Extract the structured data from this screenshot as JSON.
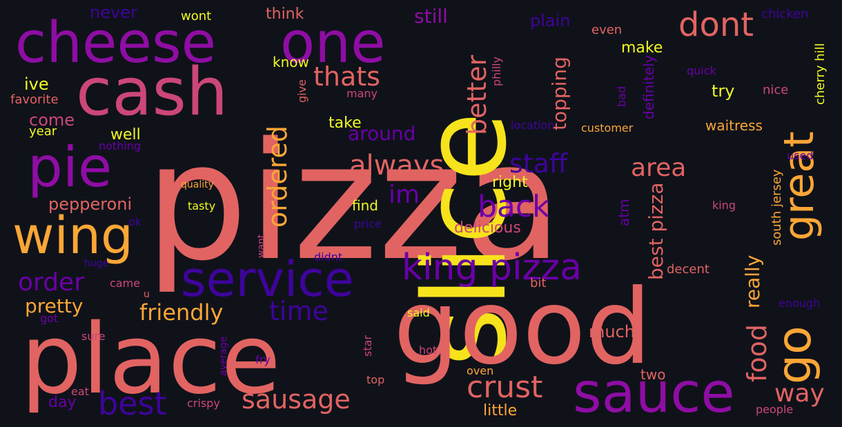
{
  "words": [
    {
      "text": "pizza",
      "color": "#e16462"
    },
    {
      "text": "slice",
      "color": "#f6e31c"
    },
    {
      "text": "good",
      "color": "#e16462"
    },
    {
      "text": "place",
      "color": "#e16462"
    },
    {
      "text": "cash",
      "color": "#cc4778"
    },
    {
      "text": "cheese",
      "color": "#8f0da4"
    },
    {
      "text": "one",
      "color": "#8f0da4"
    },
    {
      "text": "dont",
      "color": "#e16462"
    },
    {
      "text": "great",
      "color": "#fca636"
    },
    {
      "text": "sauce",
      "color": "#8f0da4"
    },
    {
      "text": "service",
      "color": "#3f049c"
    },
    {
      "text": "king pizza",
      "color": "#6a00a8"
    },
    {
      "text": "pie",
      "color": "#8f0da4"
    },
    {
      "text": "wing",
      "color": "#fca636"
    },
    {
      "text": "go",
      "color": "#fca636"
    },
    {
      "text": "best",
      "color": "#3f049c"
    },
    {
      "text": "crust",
      "color": "#e16462"
    },
    {
      "text": "sausage",
      "color": "#e16462"
    },
    {
      "text": "back",
      "color": "#6a00a8"
    },
    {
      "text": "always",
      "color": "#e16462"
    },
    {
      "text": "ordered",
      "color": "#fca636"
    },
    {
      "text": "thats",
      "color": "#e16462"
    },
    {
      "text": "better",
      "color": "#e16462"
    },
    {
      "text": "staff",
      "color": "#3f049c"
    },
    {
      "text": "area",
      "color": "#e16462"
    },
    {
      "text": "time",
      "color": "#3f049c"
    },
    {
      "text": "order",
      "color": "#6a00a8"
    },
    {
      "text": "friendly",
      "color": "#fca636"
    },
    {
      "text": "pretty",
      "color": "#fca636"
    },
    {
      "text": "im",
      "color": "#6a00a8"
    },
    {
      "text": "food",
      "color": "#e16462"
    },
    {
      "text": "way",
      "color": "#e16462"
    },
    {
      "text": "pepperoni",
      "color": "#e16462"
    },
    {
      "text": "topping",
      "color": "#e16462"
    },
    {
      "text": "best pizza",
      "color": "#e16462"
    },
    {
      "text": "really",
      "color": "#fca636"
    },
    {
      "text": "still",
      "color": "#8f0da4"
    },
    {
      "text": "plain",
      "color": "#3f049c"
    },
    {
      "text": "never",
      "color": "#3f049c"
    },
    {
      "text": "think",
      "color": "#e16462"
    },
    {
      "text": "wont",
      "color": "#f0f921"
    },
    {
      "text": "even",
      "color": "#e16462"
    },
    {
      "text": "chicken",
      "color": "#3f049c"
    },
    {
      "text": "make",
      "color": "#f0f921"
    },
    {
      "text": "try",
      "color": "#f0f921"
    },
    {
      "text": "nice",
      "color": "#cc4778"
    },
    {
      "text": "ive",
      "color": "#f0f921"
    },
    {
      "text": "come",
      "color": "#cc4778"
    },
    {
      "text": "favorite",
      "color": "#e16462"
    },
    {
      "text": "year",
      "color": "#f0f921"
    },
    {
      "text": "well",
      "color": "#f0f921"
    },
    {
      "text": "take",
      "color": "#f0f921"
    },
    {
      "text": "around",
      "color": "#6a00a8"
    },
    {
      "text": "know",
      "color": "#f0f921"
    },
    {
      "text": "give",
      "color": "#e16462"
    },
    {
      "text": "many",
      "color": "#cc4778"
    },
    {
      "text": "philly",
      "color": "#cc4778"
    },
    {
      "text": "bad",
      "color": "#6a00a8"
    },
    {
      "text": "quick",
      "color": "#6a00a8"
    },
    {
      "text": "cherry hill",
      "color": "#f0f921"
    },
    {
      "text": "waitress",
      "color": "#fca636"
    },
    {
      "text": "customer",
      "color": "#fca636"
    },
    {
      "text": "location",
      "color": "#3f049c"
    },
    {
      "text": "nothing",
      "color": "#6a00a8"
    },
    {
      "text": "definitely",
      "color": "#6a00a8"
    },
    {
      "text": "used",
      "color": "#6a00a8"
    },
    {
      "text": "right",
      "color": "#f0f921"
    },
    {
      "text": "find",
      "color": "#f0f921"
    },
    {
      "text": "quality",
      "color": "#fca636"
    },
    {
      "text": "tasty",
      "color": "#f0f921"
    },
    {
      "text": "ok",
      "color": "#3f049c"
    },
    {
      "text": "price",
      "color": "#3f049c"
    },
    {
      "text": "delicious",
      "color": "#cc4778"
    },
    {
      "text": "atm",
      "color": "#6a00a8"
    },
    {
      "text": "king",
      "color": "#cc4778"
    },
    {
      "text": "south jersey",
      "color": "#fca636"
    },
    {
      "text": "want",
      "color": "#cc4778"
    },
    {
      "text": "didnt",
      "color": "#3f049c"
    },
    {
      "text": "huge",
      "color": "#3f049c"
    },
    {
      "text": "came",
      "color": "#cc4778"
    },
    {
      "text": "decent",
      "color": "#e16462"
    },
    {
      "text": "bit",
      "color": "#e16462"
    },
    {
      "text": "u",
      "color": "#e16462"
    },
    {
      "text": "enough",
      "color": "#3f049c"
    },
    {
      "text": "got",
      "color": "#6a00a8"
    },
    {
      "text": "said",
      "color": "#f0f921"
    },
    {
      "text": "much",
      "color": "#e16462"
    },
    {
      "text": "sure",
      "color": "#cc4778"
    },
    {
      "text": "star",
      "color": "#cc4778"
    },
    {
      "text": "fry",
      "color": "#6a00a8"
    },
    {
      "text": "average",
      "color": "#6a00a8"
    },
    {
      "text": "hot",
      "color": "#cc4778"
    },
    {
      "text": "top",
      "color": "#e16462"
    },
    {
      "text": "eat",
      "color": "#cc4778"
    },
    {
      "text": "oven",
      "color": "#fca636"
    },
    {
      "text": "two",
      "color": "#e16462"
    },
    {
      "text": "day",
      "color": "#6a00a8"
    },
    {
      "text": "crispy",
      "color": "#cc4778"
    },
    {
      "text": "little",
      "color": "#fca636"
    },
    {
      "text": "people",
      "color": "#cc4778"
    }
  ]
}
